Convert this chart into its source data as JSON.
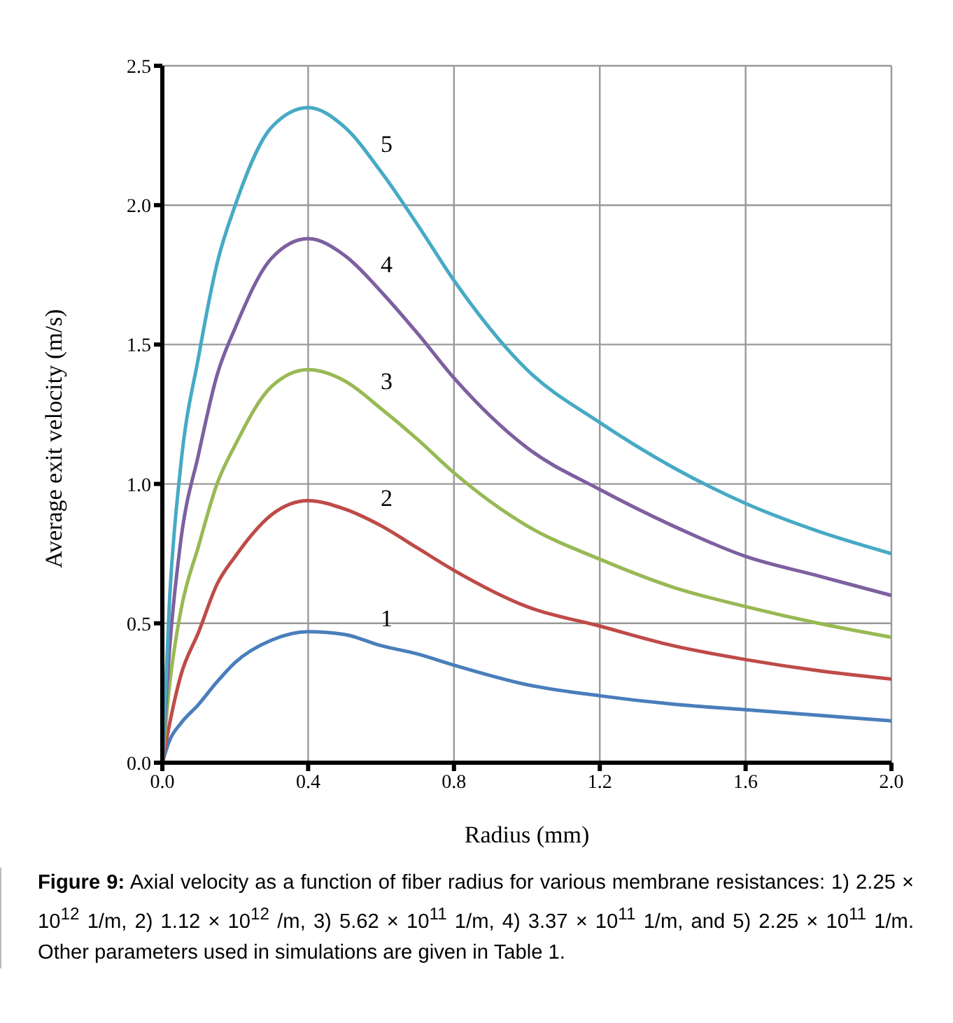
{
  "chart_data": {
    "type": "line",
    "xlabel": "Radius (mm)",
    "ylabel": "Average exit velocity (m/s)",
    "x": [
      0,
      0.02,
      0.05,
      0.1,
      0.15,
      0.2,
      0.3,
      0.4,
      0.5,
      0.6,
      0.7,
      0.8,
      1.0,
      1.2,
      1.4,
      1.6,
      1.8,
      2.0
    ],
    "series": [
      {
        "name": "1",
        "color": "#4a7ebb",
        "values": [
          0,
          0.08,
          0.14,
          0.21,
          0.29,
          0.36,
          0.44,
          0.47,
          0.46,
          0.42,
          0.39,
          0.35,
          0.28,
          0.24,
          0.21,
          0.19,
          0.17,
          0.15
        ]
      },
      {
        "name": "2",
        "color": "#be4b48",
        "values": [
          0,
          0.14,
          0.31,
          0.47,
          0.64,
          0.74,
          0.89,
          0.94,
          0.91,
          0.85,
          0.77,
          0.69,
          0.56,
          0.49,
          0.42,
          0.37,
          0.33,
          0.3
        ]
      },
      {
        "name": "3",
        "color": "#98b954",
        "values": [
          0,
          0.28,
          0.54,
          0.78,
          1.0,
          1.14,
          1.35,
          1.41,
          1.37,
          1.27,
          1.16,
          1.04,
          0.85,
          0.73,
          0.63,
          0.56,
          0.5,
          0.45
        ]
      },
      {
        "name": "4",
        "color": "#7d60a0",
        "values": [
          0,
          0.41,
          0.79,
          1.11,
          1.39,
          1.56,
          1.81,
          1.88,
          1.82,
          1.69,
          1.54,
          1.38,
          1.13,
          0.98,
          0.85,
          0.74,
          0.67,
          0.6
        ]
      },
      {
        "name": "5",
        "color": "#46aac5",
        "values": [
          0,
          0.59,
          1.06,
          1.46,
          1.79,
          2.0,
          2.28,
          2.35,
          2.28,
          2.12,
          1.93,
          1.73,
          1.41,
          1.22,
          1.06,
          0.93,
          0.83,
          0.75
        ]
      }
    ],
    "xlim": [
      0,
      2.0
    ],
    "xticks": [
      {
        "value": 0,
        "label": "0.0"
      },
      0.4,
      0.8,
      1.2,
      1.6,
      {
        "value": 2,
        "label": "2.0"
      }
    ],
    "ylim": [
      0,
      2.5
    ],
    "yticks": [
      {
        "value": 0,
        "label": "0.0"
      },
      0.5,
      {
        "value": 1,
        "label": "1.0"
      },
      1.5,
      {
        "value": 2,
        "label": "2.0"
      },
      2.5
    ],
    "grid": true,
    "marker": "none",
    "line_style": "solid",
    "annotations": [
      "Figure 9: Axial velocity as a function of fiber radius for various membrane resistances: 1) 2.25 × 10$^{12}$ 1/m, 2) 1.12 × 10$^{12}$ /m, 3) 5.62 × 10$^{11}$ 1/m, 4) 3.37 × 10$^{11}$ 1/m, and 5) 2.25 × 10$^{11}$ 1/m. Other parameters used in simulations are given in Table 1."
    ]
  }
}
